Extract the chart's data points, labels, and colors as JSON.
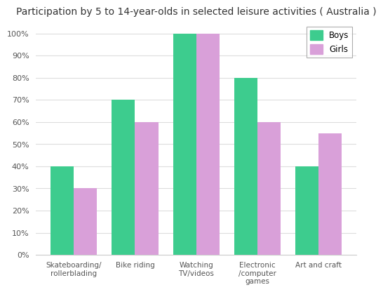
{
  "title": "Participation by 5 to 14-year-olds in selected leisure activities ( Australia )",
  "categories": [
    "Skateboarding/\nrollerblading",
    "Bike riding",
    "Watching\nTV/videos",
    "Electronic\n/computer\ngames",
    "Art and craft"
  ],
  "boys": [
    40,
    70,
    100,
    80,
    40
  ],
  "girls": [
    30,
    60,
    100,
    60,
    55
  ],
  "boys_color": "#3dcc8e",
  "girls_color": "#d9a0d9",
  "ylim": [
    0,
    105
  ],
  "yticks": [
    0,
    10,
    20,
    30,
    40,
    50,
    60,
    70,
    80,
    90,
    100
  ],
  "ytick_labels": [
    "0%",
    "10%",
    "20%",
    "30%",
    "40%",
    "50%",
    "60%",
    "70%",
    "80%",
    "90%",
    "100%"
  ],
  "background_color": "#ffffff",
  "grid_color": "#dddddd",
  "legend_labels": [
    "Boys",
    "Girls"
  ],
  "bar_width": 0.38,
  "title_fontsize": 10,
  "tick_fontsize": 8,
  "xlabel_fontsize": 7.5
}
